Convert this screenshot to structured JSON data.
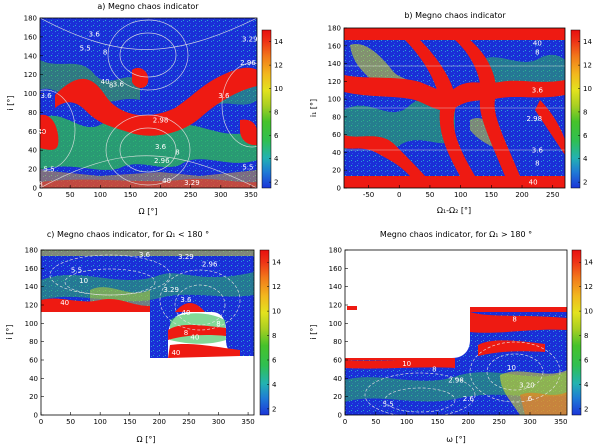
{
  "chart_data": [
    {
      "type": "heatmap",
      "title": "a) Megno chaos indicator",
      "xlabel": "Ω [°]",
      "ylabel": "i [°]",
      "xticks": [
        "0",
        "50",
        "100",
        "150",
        "200",
        "250",
        "300",
        "350"
      ],
      "yticks": [
        "0",
        "20",
        "40",
        "60",
        "80",
        "100",
        "120",
        "140",
        "160",
        "180"
      ],
      "xlim": [
        0,
        360
      ],
      "ylim": [
        0,
        180
      ],
      "colorbar": {
        "ticks": [
          "2",
          "4",
          "6",
          "8",
          "10",
          "12",
          "14"
        ],
        "range": [
          1.5,
          15
        ]
      },
      "contour_labels": [
        {
          "text": "3.6",
          "x": 90,
          "y": 163
        },
        {
          "text": "5.5",
          "x": 75,
          "y": 148
        },
        {
          "text": "8",
          "x": 108,
          "y": 144
        },
        {
          "text": "3.29",
          "x": 348,
          "y": 158
        },
        {
          "text": "2.96",
          "x": 345,
          "y": 133
        },
        {
          "text": "40",
          "x": 108,
          "y": 113
        },
        {
          "text": "8",
          "x": 118,
          "y": 109
        },
        {
          "text": "3.6",
          "x": 130,
          "y": 110
        },
        {
          "text": "3.6",
          "x": 10,
          "y": 98
        },
        {
          "text": "3.6",
          "x": 305,
          "y": 98
        },
        {
          "text": "2.98",
          "x": 200,
          "y": 72
        },
        {
          "text": "40",
          "x": 3,
          "y": 60
        },
        {
          "text": "3.6",
          "x": 200,
          "y": 44
        },
        {
          "text": "8",
          "x": 228,
          "y": 38
        },
        {
          "text": "2.96",
          "x": 202,
          "y": 29
        },
        {
          "text": "5.5",
          "x": 15,
          "y": 20
        },
        {
          "text": "8",
          "x": 1,
          "y": 4
        },
        {
          "text": "40",
          "x": 210,
          "y": 8
        },
        {
          "text": "3.29",
          "x": 252,
          "y": 6
        },
        {
          "text": "5.5",
          "x": 345,
          "y": 22
        }
      ]
    },
    {
      "type": "heatmap",
      "title": "b) Megno chaos indicator",
      "xlabel": "Ω₁-Ω₂ [°]",
      "ylabel": "i₁ [°]",
      "xticks": [
        "-50",
        "0",
        "50",
        "100",
        "150",
        "200",
        "250"
      ],
      "yticks": [
        "0",
        "20",
        "40",
        "60",
        "80",
        "100",
        "120",
        "140",
        "160",
        "180"
      ],
      "xlim": [
        -90,
        270
      ],
      "ylim": [
        0,
        180
      ],
      "colorbar": {
        "ticks": [
          "2",
          "4",
          "6",
          "8",
          "10",
          "12",
          "14"
        ],
        "range": [
          1.5,
          15
        ]
      },
      "contour_labels": [
        {
          "text": "40",
          "x": 225,
          "y": 163
        },
        {
          "text": "8",
          "x": 225,
          "y": 153
        },
        {
          "text": "3.6",
          "x": 225,
          "y": 110
        },
        {
          "text": "2.98",
          "x": 220,
          "y": 78
        },
        {
          "text": "3.6",
          "x": 225,
          "y": 43
        },
        {
          "text": "8",
          "x": 225,
          "y": 28
        },
        {
          "text": "40",
          "x": 218,
          "y": 7
        }
      ]
    },
    {
      "type": "heatmap",
      "title": "c) Megno chaos indicator, for Ω₁ < 180 °",
      "xlabel": "Ω [°]",
      "ylabel": "i [°]",
      "xticks": [
        "0",
        "50",
        "100",
        "150",
        "200",
        "250",
        "300",
        "350"
      ],
      "yticks": [
        "0",
        "20",
        "40",
        "60",
        "80",
        "100",
        "120",
        "140",
        "160",
        "180"
      ],
      "xlim": [
        0,
        360
      ],
      "ylim": [
        0,
        180
      ],
      "colorbar": {
        "ticks": [
          "2",
          "4",
          "6",
          "8",
          "10",
          "12",
          "14"
        ],
        "range": [
          1.5,
          15
        ]
      },
      "contour_labels": [
        {
          "text": "3.6",
          "x": 175,
          "y": 175
        },
        {
          "text": "3.29",
          "x": 245,
          "y": 173
        },
        {
          "text": "5.5",
          "x": 60,
          "y": 158
        },
        {
          "text": "2.96",
          "x": 285,
          "y": 165
        },
        {
          "text": "10",
          "x": 72,
          "y": 147
        },
        {
          "text": "40",
          "x": 40,
          "y": 123
        },
        {
          "text": "3.29",
          "x": 220,
          "y": 137
        },
        {
          "text": "3.6",
          "x": 245,
          "y": 126
        },
        {
          "text": "40",
          "x": 245,
          "y": 112
        },
        {
          "text": "40",
          "x": 260,
          "y": 85
        },
        {
          "text": "8",
          "x": 300,
          "y": 100
        },
        {
          "text": "8",
          "x": 245,
          "y": 90
        },
        {
          "text": "40",
          "x": 228,
          "y": 68
        }
      ]
    },
    {
      "type": "heatmap",
      "title": "Megno chaos indicator, for Ω₁ > 180 °",
      "xlabel": "ω [°]",
      "ylabel": "i [°]",
      "xticks": [
        "0",
        "50",
        "100",
        "150",
        "200",
        "250",
        "300",
        "350"
      ],
      "yticks": [
        "0",
        "20",
        "40",
        "60",
        "80",
        "100",
        "120",
        "140",
        "160",
        "180"
      ],
      "xlim": [
        0,
        360
      ],
      "ylim": [
        0,
        180
      ],
      "colorbar": {
        "ticks": [
          "2",
          "4",
          "6",
          "8",
          "10",
          "12",
          "14"
        ],
        "range": [
          1.5,
          15
        ]
      },
      "contour_labels": [
        {
          "text": "8",
          "x": 275,
          "y": 105
        },
        {
          "text": "10",
          "x": 100,
          "y": 56
        },
        {
          "text": "8",
          "x": 145,
          "y": 50
        },
        {
          "text": "10",
          "x": 270,
          "y": 52
        },
        {
          "text": "2.98",
          "x": 180,
          "y": 38
        },
        {
          "text": "3.20",
          "x": 295,
          "y": 33
        },
        {
          "text": "5.5",
          "x": 70,
          "y": 12
        },
        {
          "text": "2.6",
          "x": 200,
          "y": 18
        },
        {
          "text": "6",
          "x": 300,
          "y": 18
        }
      ]
    }
  ]
}
